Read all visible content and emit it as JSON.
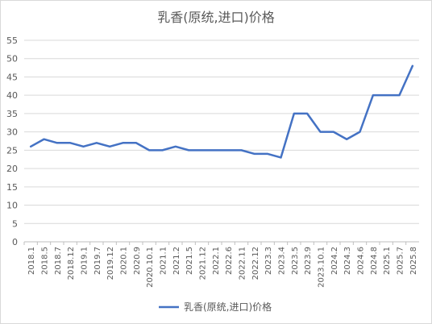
{
  "chart_data": {
    "type": "line",
    "title": "乳香(原统,进口)价格",
    "categories": [
      "2018.1",
      "2018.5",
      "2018.7",
      "2018.12",
      "2019.1",
      "2019.7",
      "2019.12",
      "2020.1",
      "2020.9",
      "2020.10.1",
      "2021.1",
      "2021.2",
      "2021.5",
      "2021.12",
      "2022.1",
      "2022.6",
      "2022.11",
      "2022.12",
      "2023.3",
      "2023.4",
      "2023.5",
      "2023.9",
      "2023.10.1",
      "2024.2",
      "2024.3",
      "2024.6",
      "2024.8",
      "2025.1",
      "2025.7",
      "2025.8"
    ],
    "series": [
      {
        "name": "乳香(原统,进口)价格",
        "color": "#4472C4",
        "values": [
          26,
          28,
          27,
          27,
          26,
          27,
          26,
          27,
          27,
          25,
          25,
          26,
          25,
          25,
          25,
          25,
          25,
          24,
          24,
          23,
          35,
          35,
          30,
          30,
          28,
          30,
          40,
          40,
          40,
          48
        ]
      }
    ],
    "ylim": [
      0,
      55
    ],
    "yticks": [
      0,
      5,
      10,
      15,
      20,
      25,
      30,
      35,
      40,
      45,
      50,
      55
    ],
    "grid": true,
    "legend": "bottom"
  }
}
